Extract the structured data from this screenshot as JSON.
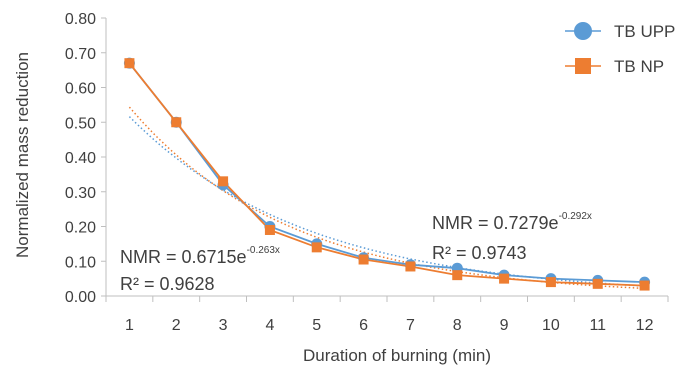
{
  "chart_data": {
    "type": "line",
    "xlabel": "Duration of burning (min)",
    "ylabel": "Normalized mass reduction",
    "categories": [
      "1",
      "2",
      "3",
      "4",
      "5",
      "6",
      "7",
      "8",
      "9",
      "10",
      "11",
      "12"
    ],
    "ylim": [
      0,
      0.8
    ],
    "yticks": [
      "0.00",
      "0.10",
      "0.20",
      "0.30",
      "0.40",
      "0.50",
      "0.60",
      "0.70",
      "0.80"
    ],
    "grid": false,
    "legend_position": "top-right",
    "series": [
      {
        "name": "TB UPP",
        "color": "#5B9BD5",
        "marker": "circle",
        "values": [
          0.67,
          0.5,
          0.32,
          0.2,
          0.15,
          0.11,
          0.09,
          0.08,
          0.06,
          0.05,
          0.045,
          0.04
        ],
        "trendline": {
          "a": 0.6715,
          "b": -0.263
        }
      },
      {
        "name": "TB NP",
        "color": "#ED7D31",
        "marker": "square",
        "values": [
          0.67,
          0.5,
          0.33,
          0.19,
          0.14,
          0.105,
          0.085,
          0.06,
          0.05,
          0.04,
          0.035,
          0.03
        ],
        "trendline": {
          "a": 0.7279,
          "b": -0.292
        }
      }
    ],
    "annotations": [
      {
        "base": "NMR = 0.6715e",
        "exponent": "-0.263x",
        "r2": "R² = 0.9628"
      },
      {
        "base": "NMR = 0.7279e",
        "exponent": "-0.292x",
        "r2": "R² = 0.9743"
      }
    ]
  }
}
